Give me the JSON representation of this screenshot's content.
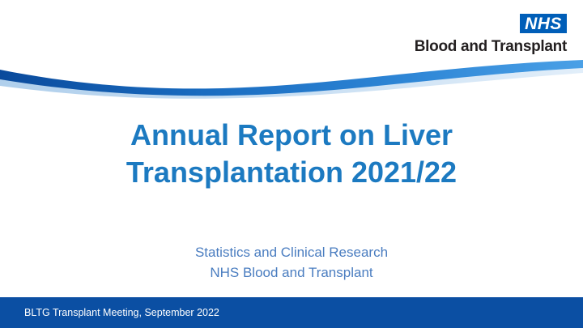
{
  "logo": {
    "badge_text": "NHS",
    "org_name": "Blood and Transplant",
    "badge_color": "#005eb8"
  },
  "title": {
    "line1": "Annual Report on Liver",
    "line2": "Transplantation 2021/22",
    "color": "#1c7ac1"
  },
  "subtitle": {
    "line1": "Statistics and Clinical Research",
    "line2": "NHS Blood and Transplant",
    "color": "#4a7dc0"
  },
  "footer": {
    "text": "BLTG Transplant Meeting, September 2022",
    "background": "#0b4fa3"
  }
}
